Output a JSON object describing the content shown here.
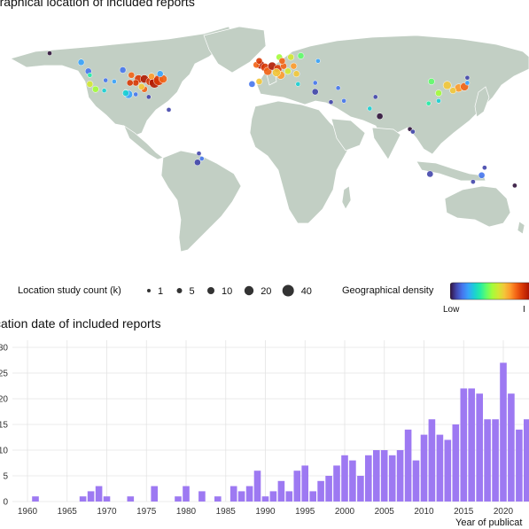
{
  "map": {
    "title": "ographical location of included reports",
    "land_color": "#c2cfc4",
    "border_color": "#ffffff",
    "legend_size": {
      "label": "Location study count (k)",
      "entries": [
        "1",
        "5",
        "10",
        "20",
        "40"
      ]
    },
    "legend_density": {
      "label": "Geographical density",
      "low": "Low",
      "high": "I",
      "colors": [
        "#30123b",
        "#4145ab",
        "#4675ed",
        "#39a2fc",
        "#1bcfd4",
        "#24eca6",
        "#61fc6c",
        "#a4fc3b",
        "#d1e834",
        "#f3c63a",
        "#fe9b2d",
        "#f36315",
        "#d93806",
        "#b11901",
        "#7a0403"
      ]
    },
    "points": [
      {
        "lon": -150,
        "lat": 62,
        "size": 1,
        "color": "#30123b"
      },
      {
        "lon": -128,
        "lat": 55,
        "size": 2,
        "color": "#39a2fc"
      },
      {
        "lon": -123,
        "lat": 48,
        "size": 2,
        "color": "#4675ed"
      },
      {
        "lon": -122,
        "lat": 45,
        "size": 1,
        "color": "#24eca6"
      },
      {
        "lon": -122,
        "lat": 38,
        "size": 2,
        "color": "#d1e834"
      },
      {
        "lon": -118,
        "lat": 34,
        "size": 2,
        "color": "#a4fc3b"
      },
      {
        "lon": -112,
        "lat": 33,
        "size": 1,
        "color": "#1bcfd4"
      },
      {
        "lon": -105,
        "lat": 40,
        "size": 1,
        "color": "#39a2fc"
      },
      {
        "lon": -111,
        "lat": 41,
        "size": 1,
        "color": "#4675ed"
      },
      {
        "lon": -97,
        "lat": 32,
        "size": 1,
        "color": "#24eca6"
      },
      {
        "lon": -95,
        "lat": 30,
        "size": 3,
        "color": "#39a2fc"
      },
      {
        "lon": -97,
        "lat": 31,
        "size": 2,
        "color": "#1bcfd4"
      },
      {
        "lon": -90,
        "lat": 30,
        "size": 1,
        "color": "#4675ed"
      },
      {
        "lon": -84,
        "lat": 34,
        "size": 2,
        "color": "#f36315"
      },
      {
        "lon": -81,
        "lat": 28,
        "size": 1,
        "color": "#4145ab"
      },
      {
        "lon": -88,
        "lat": 42,
        "size": 3,
        "color": "#d93806"
      },
      {
        "lon": -84,
        "lat": 42,
        "size": 3,
        "color": "#b11901"
      },
      {
        "lon": -80,
        "lat": 40,
        "size": 3,
        "color": "#d93806"
      },
      {
        "lon": -77,
        "lat": 39,
        "size": 4,
        "color": "#b11901"
      },
      {
        "lon": -74,
        "lat": 41,
        "size": 4,
        "color": "#d93806"
      },
      {
        "lon": -71,
        "lat": 42,
        "size": 3,
        "color": "#f36315"
      },
      {
        "lon": -79,
        "lat": 44,
        "size": 2,
        "color": "#fe9b2d"
      },
      {
        "lon": -93,
        "lat": 45,
        "size": 2,
        "color": "#f36315"
      },
      {
        "lon": -90,
        "lat": 39,
        "size": 2,
        "color": "#d93806"
      },
      {
        "lon": -86,
        "lat": 36,
        "size": 2,
        "color": "#f3c63a"
      },
      {
        "lon": -94,
        "lat": 39,
        "size": 2,
        "color": "#d93806"
      },
      {
        "lon": -99,
        "lat": 49,
        "size": 2,
        "color": "#4675ed"
      },
      {
        "lon": -73,
        "lat": 46,
        "size": 2,
        "color": "#39a2fc"
      },
      {
        "lon": -67,
        "lat": 18,
        "size": 1,
        "color": "#4145ab"
      },
      {
        "lon": -47,
        "lat": -23,
        "size": 2,
        "color": "#4145ab"
      },
      {
        "lon": -44,
        "lat": -20,
        "size": 1,
        "color": "#4675ed"
      },
      {
        "lon": -46,
        "lat": -16,
        "size": 1,
        "color": "#4145ab"
      },
      {
        "lon": -9,
        "lat": 38,
        "size": 2,
        "color": "#4675ed"
      },
      {
        "lon": -4,
        "lat": 40,
        "size": 2,
        "color": "#f3c63a"
      },
      {
        "lon": -3,
        "lat": 53,
        "size": 3,
        "color": "#b11901"
      },
      {
        "lon": 0,
        "lat": 51,
        "size": 3,
        "color": "#d93806"
      },
      {
        "lon": 2,
        "lat": 48,
        "size": 3,
        "color": "#f36315"
      },
      {
        "lon": 5,
        "lat": 52,
        "size": 3,
        "color": "#b11901"
      },
      {
        "lon": 9,
        "lat": 50,
        "size": 3,
        "color": "#d93806"
      },
      {
        "lon": 13,
        "lat": 52,
        "size": 2,
        "color": "#f36315"
      },
      {
        "lon": 11,
        "lat": 45,
        "size": 3,
        "color": "#fe9b2d"
      },
      {
        "lon": 8,
        "lat": 47,
        "size": 3,
        "color": "#f3c63a"
      },
      {
        "lon": 18,
        "lat": 59,
        "size": 2,
        "color": "#d1e834"
      },
      {
        "lon": 10,
        "lat": 59,
        "size": 2,
        "color": "#a4fc3b"
      },
      {
        "lon": 25,
        "lat": 60,
        "size": 2,
        "color": "#61fc6c"
      },
      {
        "lon": 12,
        "lat": 56,
        "size": 2,
        "color": "#f36315"
      },
      {
        "lon": 20,
        "lat": 52,
        "size": 2,
        "color": "#fe9b2d"
      },
      {
        "lon": 22,
        "lat": 46,
        "size": 2,
        "color": "#f3c63a"
      },
      {
        "lon": 23,
        "lat": 38,
        "size": 1,
        "color": "#1bcfd4"
      },
      {
        "lon": 16,
        "lat": 48,
        "size": 2,
        "color": "#d1e834"
      },
      {
        "lon": -6,
        "lat": 53,
        "size": 2,
        "color": "#f36315"
      },
      {
        "lon": -4,
        "lat": 56,
        "size": 2,
        "color": "#d93806"
      },
      {
        "lon": 37,
        "lat": 56,
        "size": 1,
        "color": "#39a2fc"
      },
      {
        "lon": 35,
        "lat": 39,
        "size": 1,
        "color": "#4675ed"
      },
      {
        "lon": 35,
        "lat": 32,
        "size": 2,
        "color": "#4145ab"
      },
      {
        "lon": 51,
        "lat": 35,
        "size": 1,
        "color": "#4675ed"
      },
      {
        "lon": 46,
        "lat": 24,
        "size": 1,
        "color": "#4145ab"
      },
      {
        "lon": 55,
        "lat": 25,
        "size": 1,
        "color": "#4675ed"
      },
      {
        "lon": 77,
        "lat": 28,
        "size": 1,
        "color": "#4145ab"
      },
      {
        "lon": 73,
        "lat": 19,
        "size": 1,
        "color": "#1bcfd4"
      },
      {
        "lon": 80,
        "lat": 13,
        "size": 2,
        "color": "#30123b"
      },
      {
        "lon": 101,
        "lat": 3,
        "size": 1,
        "color": "#30123b"
      },
      {
        "lon": 103,
        "lat": 1,
        "size": 1,
        "color": "#4145ab"
      },
      {
        "lon": 116,
        "lat": 40,
        "size": 2,
        "color": "#61fc6c"
      },
      {
        "lon": 121,
        "lat": 31,
        "size": 2,
        "color": "#a4fc3b"
      },
      {
        "lon": 114,
        "lat": 23,
        "size": 1,
        "color": "#24eca6"
      },
      {
        "lon": 127,
        "lat": 37,
        "size": 3,
        "color": "#f3c63a"
      },
      {
        "lon": 121,
        "lat": 25,
        "size": 1,
        "color": "#1bcfd4"
      },
      {
        "lon": 135,
        "lat": 35,
        "size": 3,
        "color": "#fe9b2d"
      },
      {
        "lon": 139,
        "lat": 36,
        "size": 3,
        "color": "#f36315"
      },
      {
        "lon": 131,
        "lat": 33,
        "size": 2,
        "color": "#f3c63a"
      },
      {
        "lon": 141,
        "lat": 39,
        "size": 1,
        "color": "#39a2fc"
      },
      {
        "lon": 141,
        "lat": 43,
        "size": 1,
        "color": "#4145ab"
      },
      {
        "lon": 115,
        "lat": -32,
        "size": 2,
        "color": "#4145ab"
      },
      {
        "lon": 151,
        "lat": -33,
        "size": 2,
        "color": "#4675ed"
      },
      {
        "lon": 145,
        "lat": -38,
        "size": 1,
        "color": "#4145ab"
      },
      {
        "lon": 153,
        "lat": -27,
        "size": 1,
        "color": "#4145ab"
      },
      {
        "lon": 174,
        "lat": -41,
        "size": 1,
        "color": "#30123b"
      }
    ]
  },
  "chart_data": {
    "type": "bar",
    "title": "blication date of included reports",
    "xlabel": "Year of publicat",
    "ylabel": "",
    "bar_color": "#9d79f2",
    "ylim": [
      0,
      40
    ],
    "yticks": [
      "0",
      "5",
      "10",
      "15",
      "20",
      "25",
      "30"
    ],
    "xticks": [
      "1960",
      "1965",
      "1970",
      "1975",
      "1980",
      "1985",
      "1990",
      "1995",
      "2000",
      "2005",
      "2010",
      "2015",
      "2020"
    ],
    "grid": true,
    "x": [
      1961,
      1967,
      1968,
      1969,
      1970,
      1973,
      1976,
      1979,
      1980,
      1982,
      1984,
      1986,
      1987,
      1988,
      1989,
      1990,
      1991,
      1992,
      1993,
      1994,
      1995,
      1996,
      1997,
      1998,
      1999,
      2000,
      2001,
      2002,
      2003,
      2004,
      2005,
      2006,
      2007,
      2008,
      2009,
      2010,
      2011,
      2012,
      2013,
      2014,
      2015,
      2016,
      2017,
      2018,
      2019,
      2020,
      2021,
      2022,
      2023
    ],
    "values": [
      1,
      1,
      2,
      3,
      1,
      1,
      3,
      1,
      3,
      2,
      1,
      3,
      2,
      3,
      6,
      1,
      2,
      4,
      2,
      6,
      7,
      2,
      4,
      5,
      7,
      9,
      8,
      5,
      9,
      10,
      10,
      9,
      10,
      14,
      8,
      13,
      16,
      13,
      12,
      15,
      22,
      22,
      21,
      16,
      16,
      27,
      21,
      14,
      16
    ]
  }
}
